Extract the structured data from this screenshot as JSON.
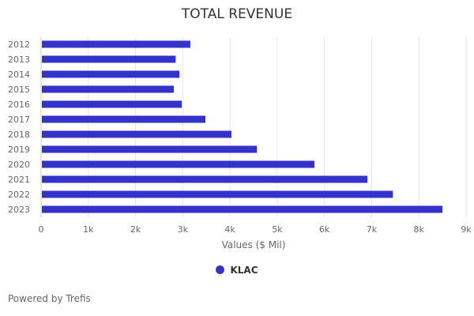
{
  "chart_data": {
    "type": "bar",
    "orientation": "horizontal",
    "title": "TOTAL REVENUE",
    "xlabel": "Values ($ Mil)",
    "ylabel": "",
    "categories": [
      "2012",
      "2013",
      "2014",
      "2015",
      "2016",
      "2017",
      "2018",
      "2019",
      "2020",
      "2021",
      "2022",
      "2023"
    ],
    "series": [
      {
        "name": "KLAC",
        "color": "#3333cc",
        "values": [
          3160,
          2850,
          2930,
          2810,
          2980,
          3480,
          4030,
          4570,
          5790,
          6910,
          7450,
          8500
        ]
      }
    ],
    "xlim": [
      0,
      9000
    ],
    "xticks": [
      "0",
      "1k",
      "2k",
      "3k",
      "4k",
      "5k",
      "6k",
      "7k",
      "8k",
      "9k"
    ],
    "grid": true,
    "legend": "bottom"
  },
  "footer": {
    "credit": "Powered by Trefis"
  }
}
